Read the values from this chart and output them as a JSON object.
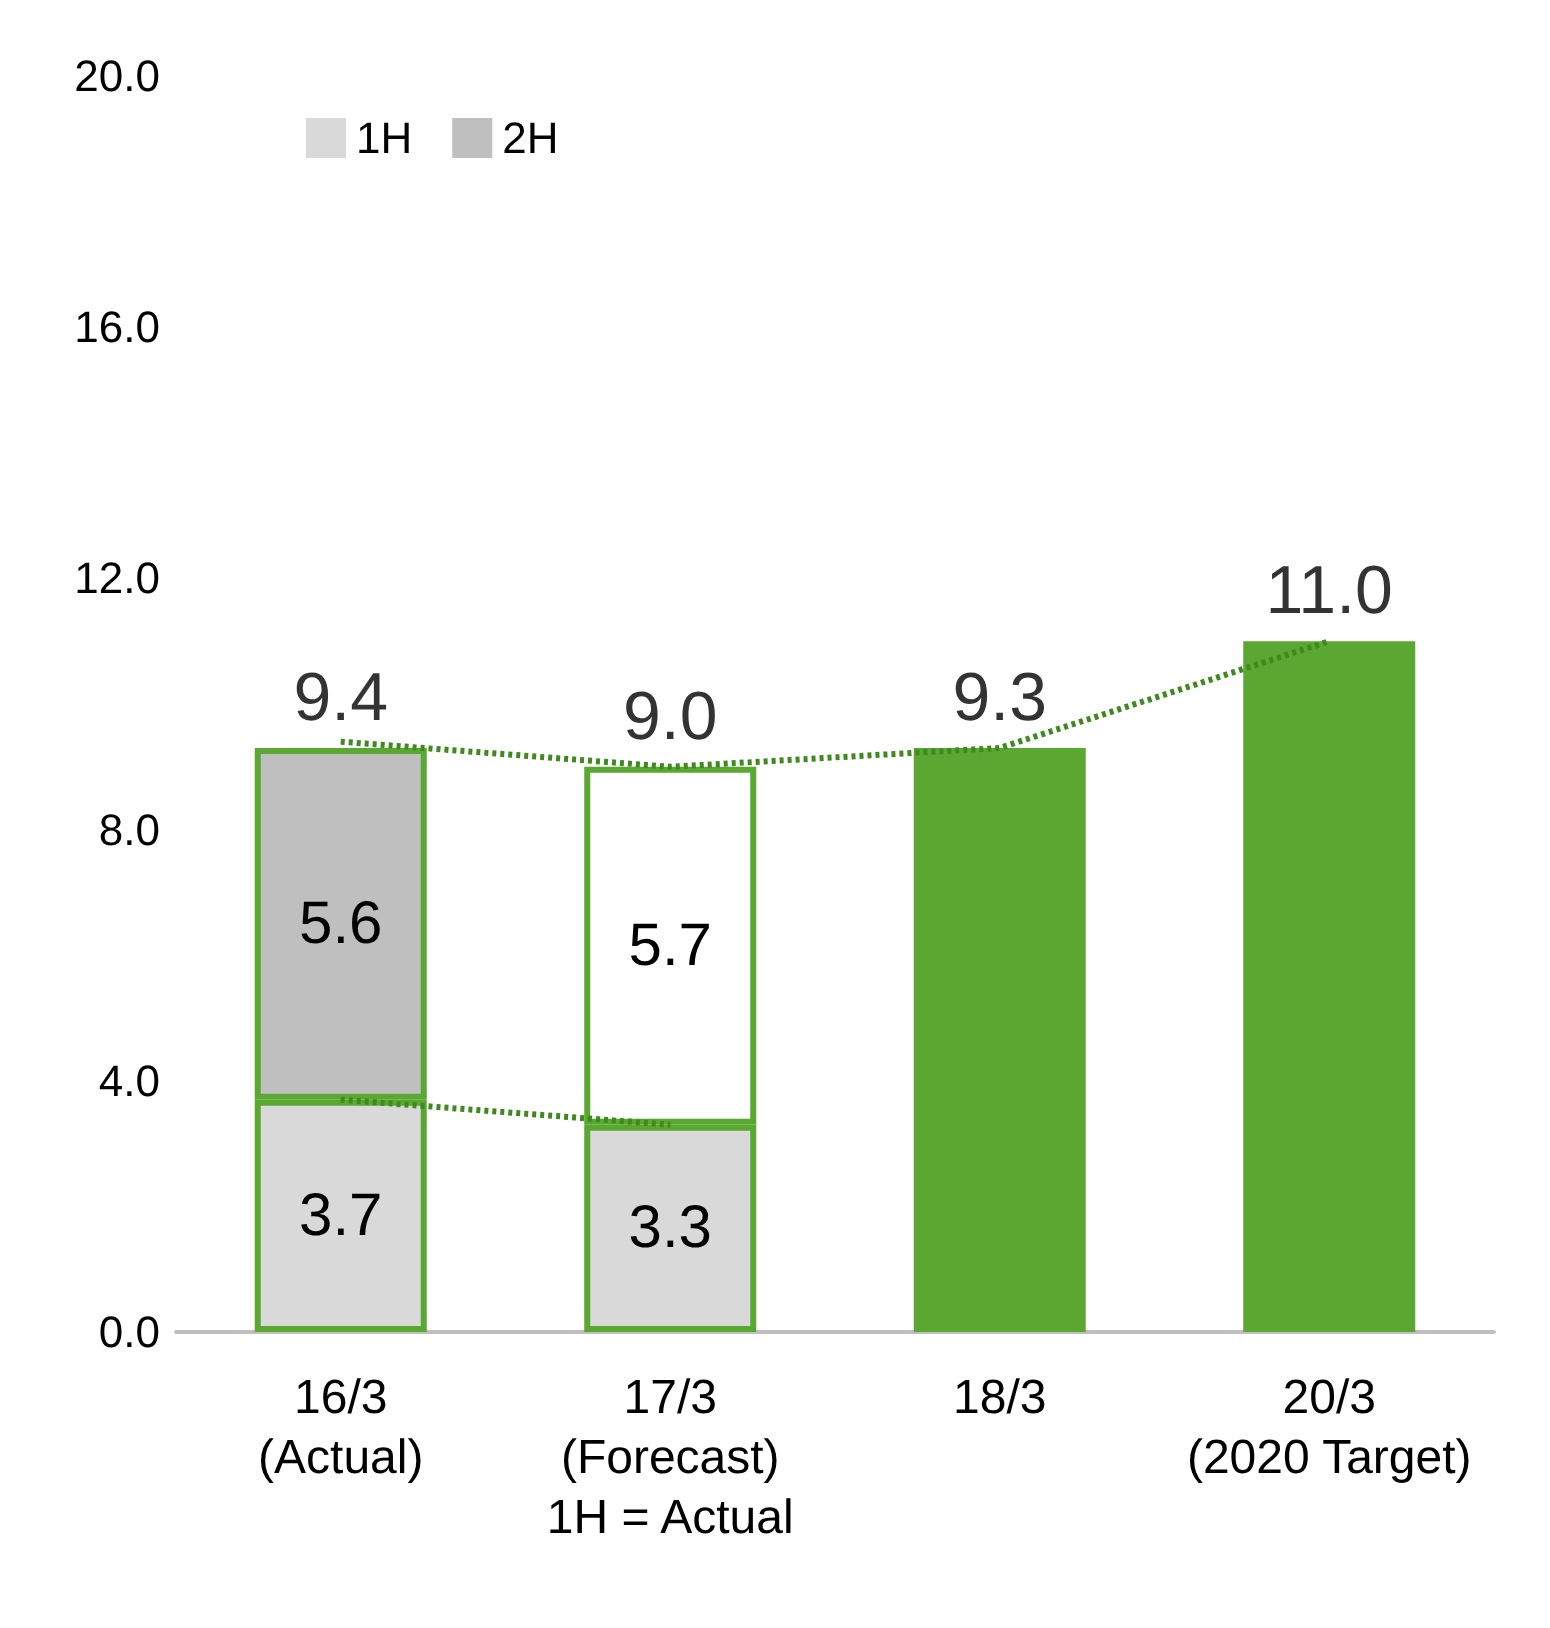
{
  "chart_data": {
    "type": "bar",
    "stacked": true,
    "categories": [
      "16/3\n(Actual)",
      "17/3\n(Forecast)\n1H = Actual",
      "18/3",
      "20/3\n(2020 Target)"
    ],
    "series": [
      {
        "name": "1H",
        "color": "#d9d9d9",
        "values": [
          3.7,
          3.3,
          null,
          null
        ],
        "value_labels": [
          "3.7",
          "3.3",
          null,
          null
        ]
      },
      {
        "name": "2H",
        "color": "#bfbfbf",
        "colors": [
          "#bfbfbf",
          "#ffffff",
          null,
          null
        ],
        "values": [
          5.6,
          5.7,
          null,
          null
        ],
        "value_labels": [
          "5.6",
          "5.7",
          null,
          null
        ]
      },
      {
        "color": "#5aa832",
        "values": [
          null,
          null,
          9.3,
          11.0
        ]
      },
      {
        "type": "line",
        "color": "#3f8a1e",
        "line_style": "dotted",
        "marker": "none",
        "values": [
          3.7,
          3.3,
          null,
          null
        ]
      },
      {
        "type": "line",
        "color": "#3f8a1e",
        "line_style": "dotted",
        "marker": "none",
        "values": [
          9.4,
          9.0,
          9.3,
          11.0
        ]
      }
    ],
    "totals": [
      "9.4",
      "9.0",
      "9.3",
      "11.0"
    ],
    "ylim": [
      0,
      20
    ],
    "yticks": [
      {
        "value": 0,
        "label": "0.0"
      },
      {
        "value": 4,
        "label": "4.0"
      },
      {
        "value": 8,
        "label": "8.0"
      },
      {
        "value": 12,
        "label": "12.0"
      },
      {
        "value": 16,
        "label": "16.0"
      },
      {
        "value": 20,
        "label": "20.0"
      }
    ],
    "grid": false,
    "legend": "top left"
  }
}
